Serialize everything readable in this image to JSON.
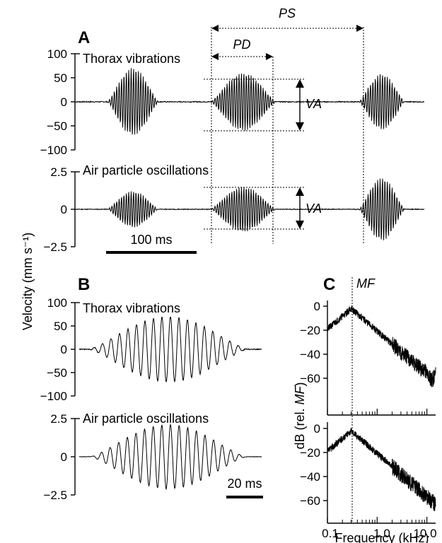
{
  "panels": {
    "a": "A",
    "b": "B",
    "c": "C"
  },
  "labels": {
    "thorax": "Thorax vibrations",
    "air": "Air particle oscillations",
    "velocity_axis": "Velocity (mm s⁻¹)",
    "db_axis_prefix": "dB (rel. ",
    "db_axis_italic": "MF",
    "db_axis_suffix": ")",
    "freq_axis": "Frequency (kHz)",
    "ps": "PS",
    "pd": "PD",
    "va": "VA",
    "mf": "MF",
    "scale_a": "100 ms",
    "scale_b": "20 ms"
  },
  "ticks": {
    "thorax": [
      "100",
      "50",
      "0",
      "−50",
      "−100"
    ],
    "air": [
      "2.5",
      "0",
      "−2.5"
    ],
    "db": [
      "0",
      "−20",
      "−40",
      "−60"
    ],
    "freq": [
      "0.1",
      "1.0",
      "10.0"
    ]
  },
  "chart_data": [
    {
      "type": "line",
      "panel": "A",
      "title": "Thorax vibrations",
      "ylabel": "Velocity (mm s⁻¹)",
      "ylim": [
        -100,
        100
      ],
      "yticks": [
        100,
        50,
        0,
        -50,
        -100
      ],
      "pulses_peak_amplitude": [
        70,
        60,
        58
      ],
      "annotations": [
        "PS",
        "PD",
        "VA"
      ]
    },
    {
      "type": "line",
      "panel": "A",
      "title": "Air particle oscillations",
      "ylabel": "Velocity (mm s⁻¹)",
      "ylim": [
        -2.5,
        2.5
      ],
      "yticks": [
        2.5,
        0,
        -2.5
      ],
      "pulses_peak_amplitude": [
        1.2,
        1.5,
        2.1
      ],
      "annotations": [
        "VA",
        "100 ms"
      ]
    },
    {
      "type": "line",
      "panel": "B",
      "title": "Thorax vibrations",
      "ylim": [
        -100,
        100
      ],
      "yticks": [
        100,
        50,
        0,
        -50,
        -100
      ],
      "peak_amplitude": 70
    },
    {
      "type": "line",
      "panel": "B",
      "title": "Air particle oscillations",
      "ylim": [
        -2.5,
        2.5
      ],
      "yticks": [
        2.5,
        0,
        -2.5
      ],
      "peak_amplitude": 2.1,
      "annotations": [
        "20 ms"
      ]
    },
    {
      "type": "line",
      "panel": "C",
      "ylabel": "dB (rel. MF)",
      "xlabel": "Frequency (kHz)",
      "x_scale": "log",
      "xlim": [
        0.1,
        15
      ],
      "xticks": [
        0.1,
        1.0,
        10.0
      ],
      "ylim": [
        -75,
        5
      ],
      "yticks": [
        0,
        -20,
        -40,
        -60
      ],
      "mf_khz": 0.3,
      "spectra": [
        "thorax",
        "air"
      ]
    }
  ]
}
